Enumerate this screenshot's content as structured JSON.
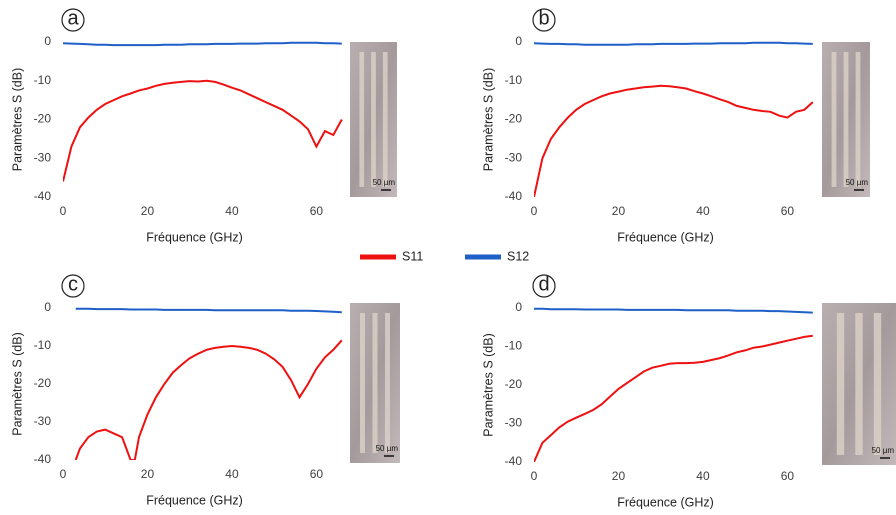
{
  "chart_data": [
    {
      "type": "line",
      "panel": "a",
      "xlabel": "Fréquence (GHz)",
      "ylabel": "Paramètres S (dB)",
      "scale_label": "50 µm",
      "x": [
        0,
        2,
        4,
        6,
        8,
        10,
        12,
        14,
        16,
        18,
        20,
        22,
        24,
        26,
        28,
        30,
        32,
        34,
        36,
        38,
        40,
        42,
        44,
        46,
        48,
        50,
        52,
        54,
        56,
        58,
        60,
        62,
        64,
        66
      ],
      "series": [
        {
          "name": "S11",
          "color": "#ee1111",
          "values": [
            -36,
            -27,
            -22,
            -19.5,
            -17.5,
            -16,
            -15,
            -14,
            -13.3,
            -12.5,
            -12,
            -11.3,
            -10.8,
            -10.5,
            -10.3,
            -10.1,
            -10.2,
            -10,
            -10.3,
            -11,
            -11.8,
            -12.5,
            -13.5,
            -14.5,
            -15.5,
            -16.5,
            -17.5,
            -19,
            -20.5,
            -22.5,
            -27,
            -23,
            -24,
            -20
          ]
        },
        {
          "name": "S12",
          "color": "#1f5fc8",
          "values": [
            -0.3,
            -0.4,
            -0.5,
            -0.6,
            -0.7,
            -0.7,
            -0.8,
            -0.8,
            -0.8,
            -0.8,
            -0.8,
            -0.8,
            -0.7,
            -0.7,
            -0.7,
            -0.6,
            -0.6,
            -0.6,
            -0.5,
            -0.5,
            -0.5,
            -0.4,
            -0.4,
            -0.4,
            -0.3,
            -0.3,
            -0.3,
            -0.2,
            -0.2,
            -0.2,
            -0.2,
            -0.3,
            -0.3,
            -0.4
          ]
        }
      ],
      "xlim": [
        0,
        67
      ],
      "ylim": [
        -40,
        0
      ],
      "xticks": [
        0,
        20,
        40,
        60
      ],
      "yticks": [
        -40,
        -30,
        -20,
        -10,
        0
      ]
    },
    {
      "type": "line",
      "panel": "b",
      "xlabel": "Fréquence (GHz)",
      "ylabel": "Paramètres S (dB)",
      "scale_label": "50 µm",
      "x": [
        0,
        2,
        4,
        6,
        8,
        10,
        12,
        14,
        16,
        18,
        20,
        22,
        24,
        26,
        28,
        30,
        32,
        34,
        36,
        38,
        40,
        42,
        44,
        46,
        48,
        50,
        52,
        54,
        56,
        58,
        60,
        62,
        64,
        66
      ],
      "series": [
        {
          "name": "S11",
          "color": "#ee1111",
          "values": [
            -40,
            -30,
            -25,
            -22,
            -19.5,
            -17.5,
            -16,
            -15,
            -14,
            -13.3,
            -12.8,
            -12.3,
            -12,
            -11.7,
            -11.5,
            -11.3,
            -11.4,
            -11.7,
            -12,
            -12.7,
            -13.3,
            -14,
            -14.8,
            -15.5,
            -16.5,
            -17,
            -17.5,
            -17.8,
            -18,
            -19,
            -19.5,
            -18,
            -17.5,
            -15.5
          ]
        },
        {
          "name": "S12",
          "color": "#1f5fc8",
          "values": [
            -0.3,
            -0.4,
            -0.5,
            -0.5,
            -0.6,
            -0.6,
            -0.7,
            -0.7,
            -0.7,
            -0.7,
            -0.7,
            -0.7,
            -0.6,
            -0.6,
            -0.6,
            -0.5,
            -0.5,
            -0.5,
            -0.5,
            -0.4,
            -0.4,
            -0.4,
            -0.3,
            -0.3,
            -0.3,
            -0.3,
            -0.2,
            -0.2,
            -0.2,
            -0.2,
            -0.3,
            -0.3,
            -0.4,
            -0.5
          ]
        }
      ],
      "xlim": [
        0,
        67
      ],
      "ylim": [
        -40,
        0
      ],
      "xticks": [
        0,
        20,
        40,
        60
      ],
      "yticks": [
        -40,
        -30,
        -20,
        -10,
        0
      ]
    },
    {
      "type": "line",
      "panel": "c",
      "xlabel": "Fréquence (GHz)",
      "ylabel": "Paramètres S (dB)",
      "scale_label": "50 µm",
      "x": [
        3,
        4,
        6,
        8,
        10,
        12,
        14,
        16,
        17,
        18,
        20,
        22,
        24,
        26,
        28,
        30,
        32,
        34,
        36,
        38,
        40,
        42,
        44,
        46,
        48,
        50,
        52,
        54,
        56,
        58,
        60,
        62,
        64,
        66
      ],
      "series": [
        {
          "name": "S11",
          "color": "#ee1111",
          "values": [
            -40,
            -37,
            -34,
            -32.5,
            -32,
            -33,
            -34,
            -40,
            -40,
            -34,
            -28,
            -23.5,
            -20,
            -17,
            -15,
            -13.2,
            -12,
            -11,
            -10.5,
            -10.2,
            -10,
            -10.2,
            -10.5,
            -11,
            -12,
            -13.5,
            -15.5,
            -19,
            -23.5,
            -20,
            -16,
            -13,
            -11,
            -8.5
          ]
        },
        {
          "name": "S12",
          "color": "#1f5fc8",
          "values": [
            -0.2,
            -0.2,
            -0.2,
            -0.3,
            -0.3,
            -0.3,
            -0.3,
            -0.4,
            -0.4,
            -0.4,
            -0.4,
            -0.4,
            -0.5,
            -0.5,
            -0.5,
            -0.5,
            -0.5,
            -0.5,
            -0.6,
            -0.6,
            -0.6,
            -0.6,
            -0.6,
            -0.6,
            -0.6,
            -0.6,
            -0.6,
            -0.7,
            -0.7,
            -0.7,
            -0.8,
            -0.9,
            -1,
            -1.1
          ]
        }
      ],
      "xlim": [
        0,
        67
      ],
      "ylim": [
        -40,
        0
      ],
      "xticks": [
        0,
        20,
        40,
        60
      ],
      "yticks": [
        -40,
        -30,
        -20,
        -10,
        0
      ]
    },
    {
      "type": "line",
      "panel": "d",
      "xlabel": "Fréquence (GHz)",
      "ylabel": "Paramètres S (dB)",
      "scale_label": "50 µm",
      "x": [
        0,
        2,
        4,
        6,
        8,
        10,
        12,
        14,
        16,
        18,
        20,
        22,
        24,
        26,
        28,
        30,
        32,
        34,
        36,
        38,
        40,
        42,
        44,
        46,
        48,
        50,
        52,
        54,
        56,
        58,
        60,
        62,
        64,
        66
      ],
      "series": [
        {
          "name": "S11",
          "color": "#ee1111",
          "values": [
            -40,
            -35,
            -33,
            -31,
            -29.5,
            -28.5,
            -27.5,
            -26.5,
            -25,
            -23,
            -21,
            -19.5,
            -18,
            -16.5,
            -15.5,
            -15,
            -14.5,
            -14.3,
            -14.3,
            -14.2,
            -14,
            -13.5,
            -13,
            -12.3,
            -11.5,
            -11,
            -10.3,
            -10,
            -9.5,
            -9,
            -8.5,
            -8,
            -7.5,
            -7.2
          ]
        },
        {
          "name": "S12",
          "color": "#1f5fc8",
          "values": [
            -0.2,
            -0.2,
            -0.3,
            -0.3,
            -0.3,
            -0.3,
            -0.4,
            -0.4,
            -0.4,
            -0.4,
            -0.4,
            -0.5,
            -0.5,
            -0.5,
            -0.5,
            -0.5,
            -0.5,
            -0.5,
            -0.6,
            -0.6,
            -0.6,
            -0.6,
            -0.6,
            -0.6,
            -0.7,
            -0.7,
            -0.7,
            -0.7,
            -0.8,
            -0.8,
            -0.9,
            -1,
            -1.1,
            -1.2
          ]
        }
      ],
      "xlim": [
        0,
        67
      ],
      "ylim": [
        -40,
        0
      ],
      "xticks": [
        0,
        20,
        40,
        60
      ],
      "yticks": [
        -40,
        -30,
        -20,
        -10,
        0
      ]
    }
  ]
}
